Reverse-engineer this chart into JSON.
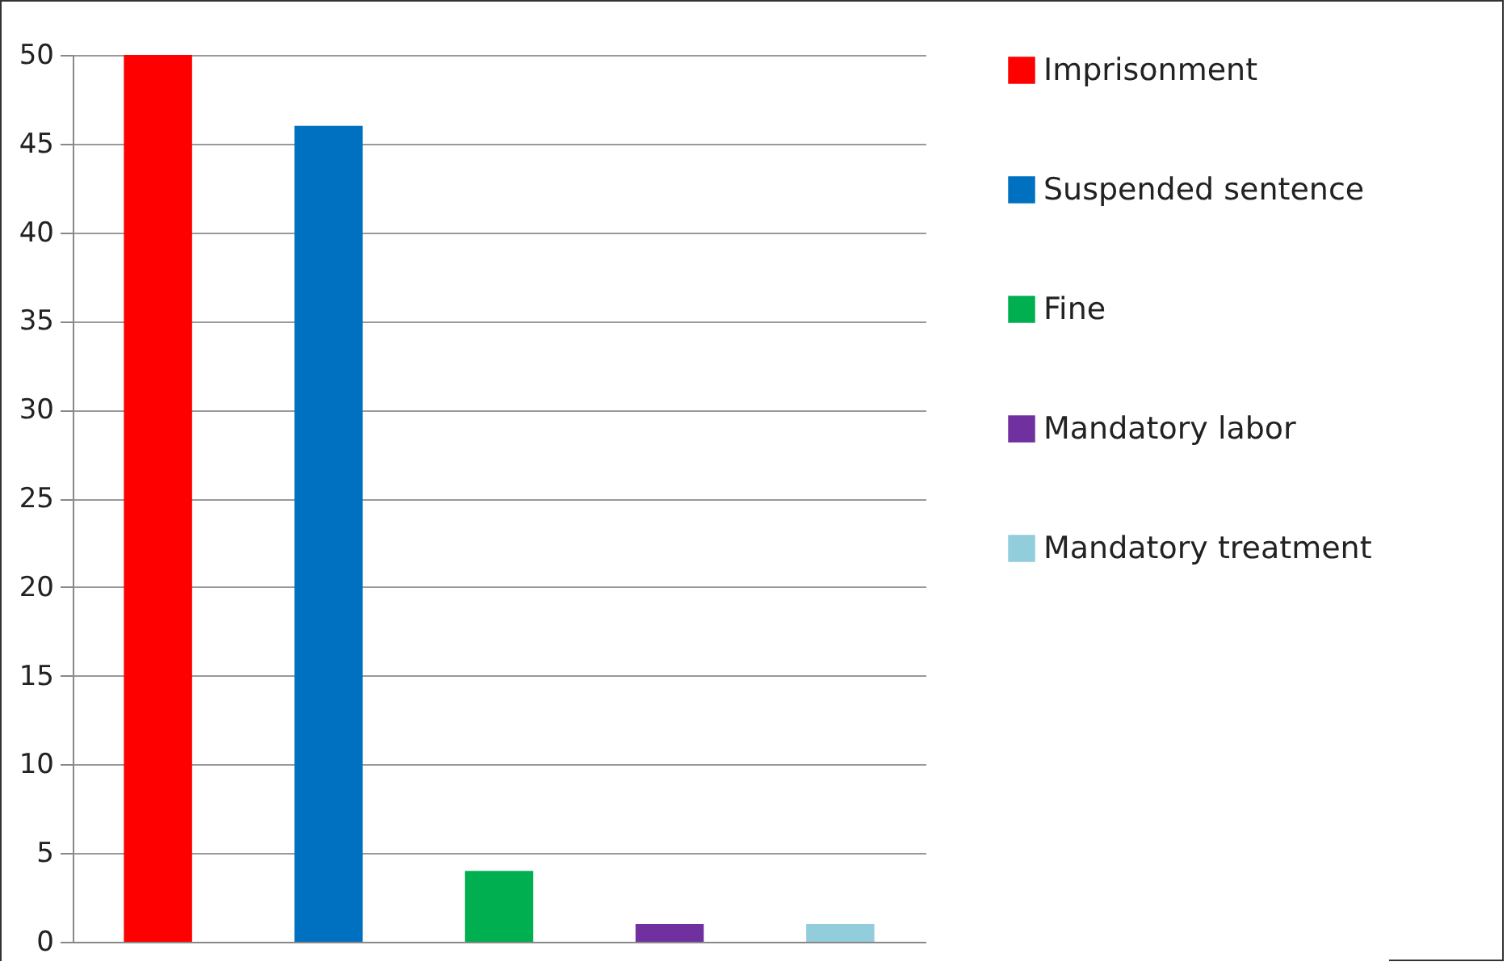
{
  "chart_data": {
    "type": "bar",
    "categories": [
      null,
      null,
      null,
      null,
      null
    ],
    "series": [
      {
        "name": "Imprisonment",
        "color": "#ff0000",
        "values": [
          50,
          null,
          null,
          null,
          null
        ]
      },
      {
        "name": "Suspended sentence",
        "color": "#0070c0",
        "values": [
          null,
          46,
          null,
          null,
          null
        ]
      },
      {
        "name": "Fine",
        "color": "#00b050",
        "values": [
          null,
          null,
          4,
          null,
          null
        ]
      },
      {
        "name": "Mandatory labor",
        "color": "#7030a0",
        "values": [
          null,
          null,
          null,
          1,
          null
        ]
      },
      {
        "name": "Mandatory treatment",
        "color": "#92cddc",
        "values": [
          null,
          null,
          null,
          null,
          1
        ]
      }
    ],
    "ylim": [
      0,
      50
    ],
    "yticks": [
      0,
      5,
      10,
      15,
      20,
      25,
      30,
      35,
      40,
      45,
      50
    ],
    "grid": "y",
    "legend": "right"
  }
}
